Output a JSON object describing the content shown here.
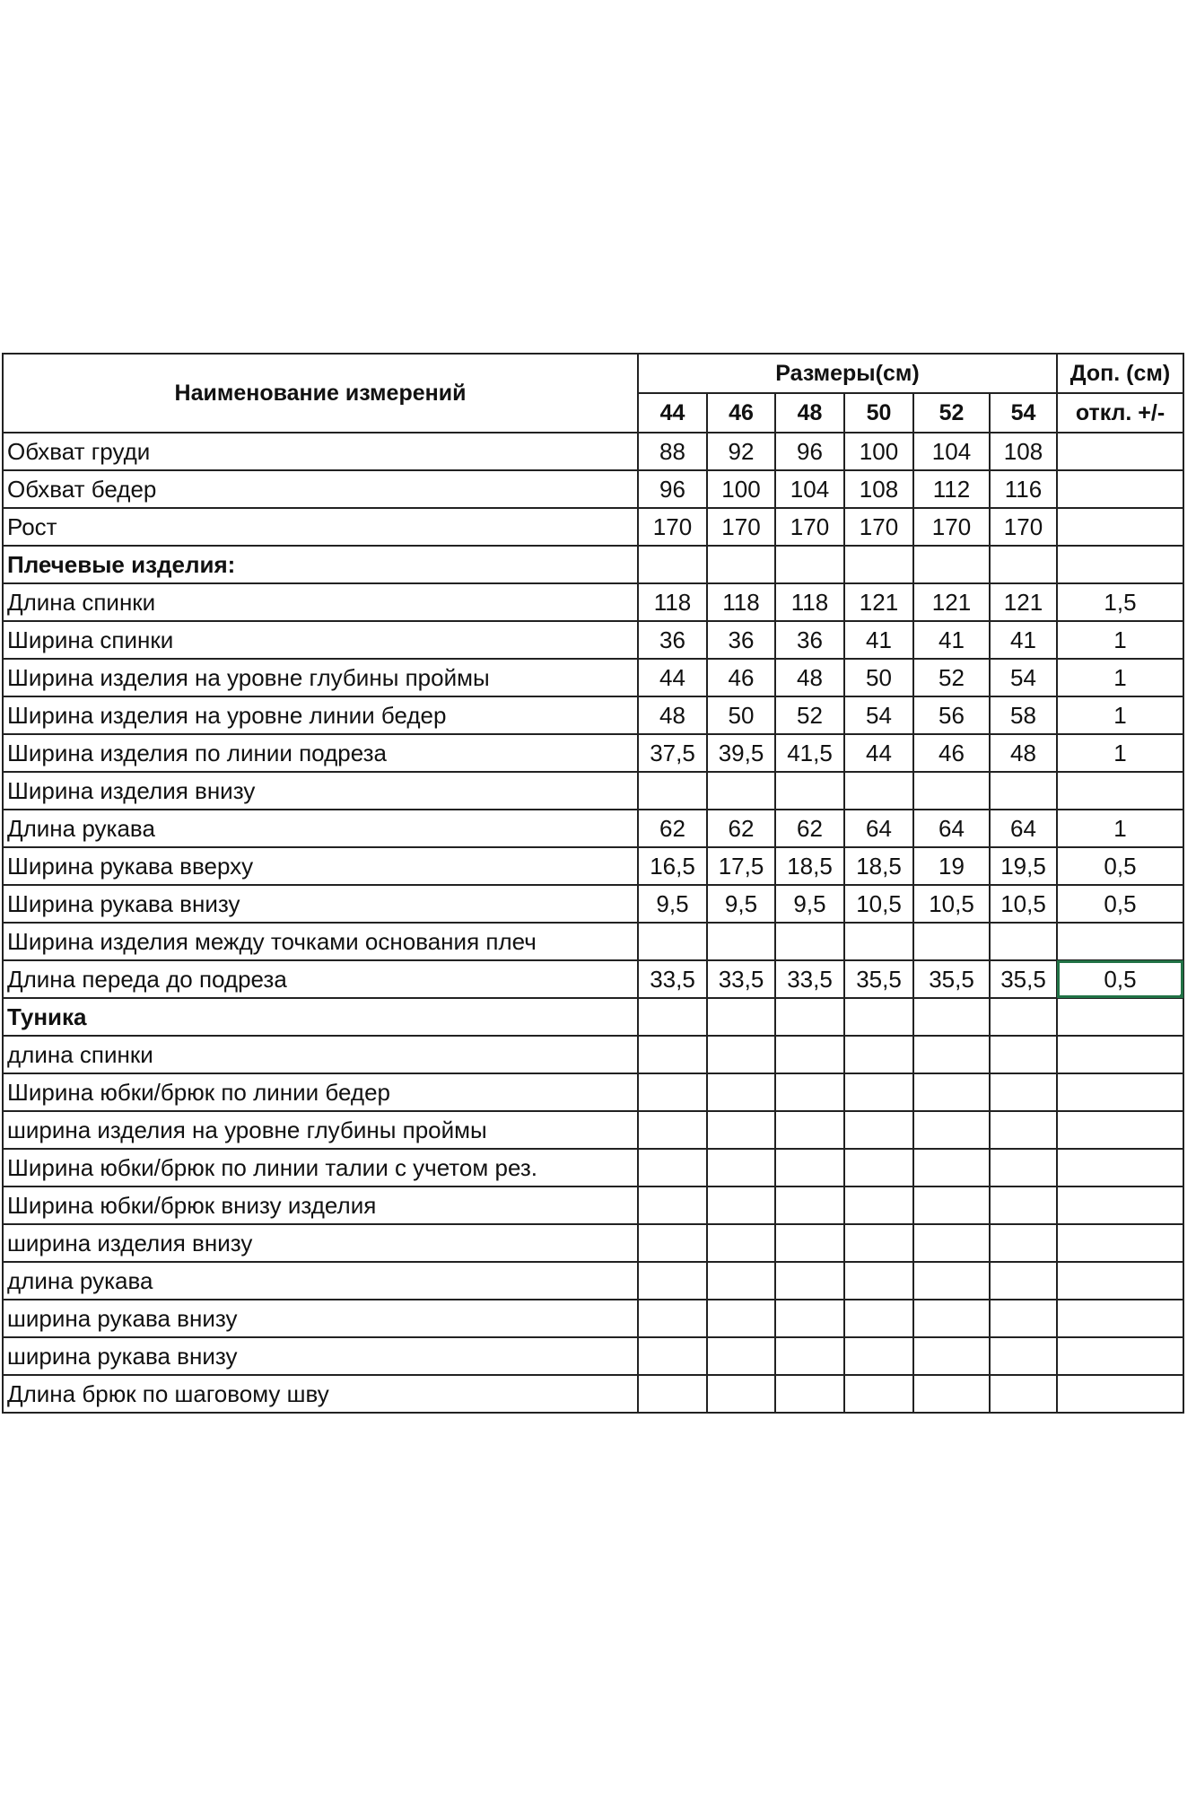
{
  "header": {
    "name_col": "Наименование измерений",
    "sizes_title": "Размеры(см)",
    "tolerance_title_1": "Доп. (см)",
    "tolerance_title_2": "откл. +/-",
    "sizes": [
      "44",
      "46",
      "48",
      "50",
      "52",
      "54"
    ]
  },
  "selection_color": "#217346",
  "rows": [
    {
      "label": "Обхват груди",
      "values": [
        "88",
        "92",
        "96",
        "100",
        "104",
        "108"
      ],
      "tol": ""
    },
    {
      "label": "Обхват бедер",
      "values": [
        "96",
        "100",
        "104",
        "108",
        "112",
        "116"
      ],
      "tol": ""
    },
    {
      "label": "Рост",
      "values": [
        "170",
        "170",
        "170",
        "170",
        "170",
        "170"
      ],
      "tol": ""
    },
    {
      "label": "Плечевые изделия:",
      "bold": true,
      "values": [
        "",
        "",
        "",
        "",
        "",
        ""
      ],
      "tol": ""
    },
    {
      "label": "Длина спинки",
      "values": [
        "118",
        "118",
        "118",
        "121",
        "121",
        "121"
      ],
      "tol": "1,5"
    },
    {
      "label": "Ширина спинки",
      "values": [
        "36",
        "36",
        "36",
        "41",
        "41",
        "41"
      ],
      "tol": "1"
    },
    {
      "label": "Ширина изделия на уровне глубины проймы",
      "values": [
        "44",
        "46",
        "48",
        "50",
        "52",
        "54"
      ],
      "tol": "1"
    },
    {
      "label": "Ширина изделия на уровне линии бедер",
      "values": [
        "48",
        "50",
        "52",
        "54",
        "56",
        "58"
      ],
      "tol": "1"
    },
    {
      "label": "Ширина изделия по линии подреза",
      "values": [
        "37,5",
        "39,5",
        "41,5",
        "44",
        "46",
        "48"
      ],
      "tol": "1"
    },
    {
      "label": "Ширина изделия внизу",
      "values": [
        "",
        "",
        "",
        "",
        "",
        ""
      ],
      "tol": ""
    },
    {
      "label": "Длина рукава",
      "values": [
        "62",
        "62",
        "62",
        "64",
        "64",
        "64"
      ],
      "tol": "1"
    },
    {
      "label": "Ширина рукава вверху",
      "values": [
        "16,5",
        "17,5",
        "18,5",
        "18,5",
        "19",
        "19,5"
      ],
      "tol": "0,5"
    },
    {
      "label": "Ширина рукава внизу",
      "values": [
        "9,5",
        "9,5",
        "9,5",
        "10,5",
        "10,5",
        "10,5"
      ],
      "tol": "0,5"
    },
    {
      "label": "Ширина изделия между точками основания плеч",
      "values": [
        "",
        "",
        "",
        "",
        "",
        ""
      ],
      "tol": ""
    },
    {
      "label": "Длина переда до подреза",
      "values": [
        "33,5",
        "33,5",
        "33,5",
        "35,5",
        "35,5",
        "35,5"
      ],
      "tol": "0,5",
      "selected": true
    },
    {
      "label": "Туника",
      "bold": true,
      "values": [
        "",
        "",
        "",
        "",
        "",
        ""
      ],
      "tol": ""
    },
    {
      "label": "длина спинки",
      "values": [
        "",
        "",
        "",
        "",
        "",
        ""
      ],
      "tol": ""
    },
    {
      "label": "Ширина юбки/брюк по линии бедер",
      "values": [
        "",
        "",
        "",
        "",
        "",
        ""
      ],
      "tol": ""
    },
    {
      "label": "ширина изделия на уровне глубины проймы",
      "values": [
        "",
        "",
        "",
        "",
        "",
        ""
      ],
      "tol": ""
    },
    {
      "label": "Ширина юбки/брюк по линии талии с учетом рез.",
      "values": [
        "",
        "",
        "",
        "",
        "",
        ""
      ],
      "tol": ""
    },
    {
      "label": "Ширина юбки/брюк внизу изделия",
      "values": [
        "",
        "",
        "",
        "",
        "",
        ""
      ],
      "tol": ""
    },
    {
      "label": "ширина изделия внизу",
      "values": [
        "",
        "",
        "",
        "",
        "",
        ""
      ],
      "tol": ""
    },
    {
      "label": "длина рукава",
      "values": [
        "",
        "",
        "",
        "",
        "",
        ""
      ],
      "tol": ""
    },
    {
      "label": "ширина рукава внизу",
      "values": [
        "",
        "",
        "",
        "",
        "",
        ""
      ],
      "tol": ""
    },
    {
      "label": "ширина рукава внизу",
      "values": [
        "",
        "",
        "",
        "",
        "",
        ""
      ],
      "tol": ""
    },
    {
      "label": "Длина брюк по шаговому шву",
      "values": [
        "",
        "",
        "",
        "",
        "",
        ""
      ],
      "tol": ""
    }
  ]
}
